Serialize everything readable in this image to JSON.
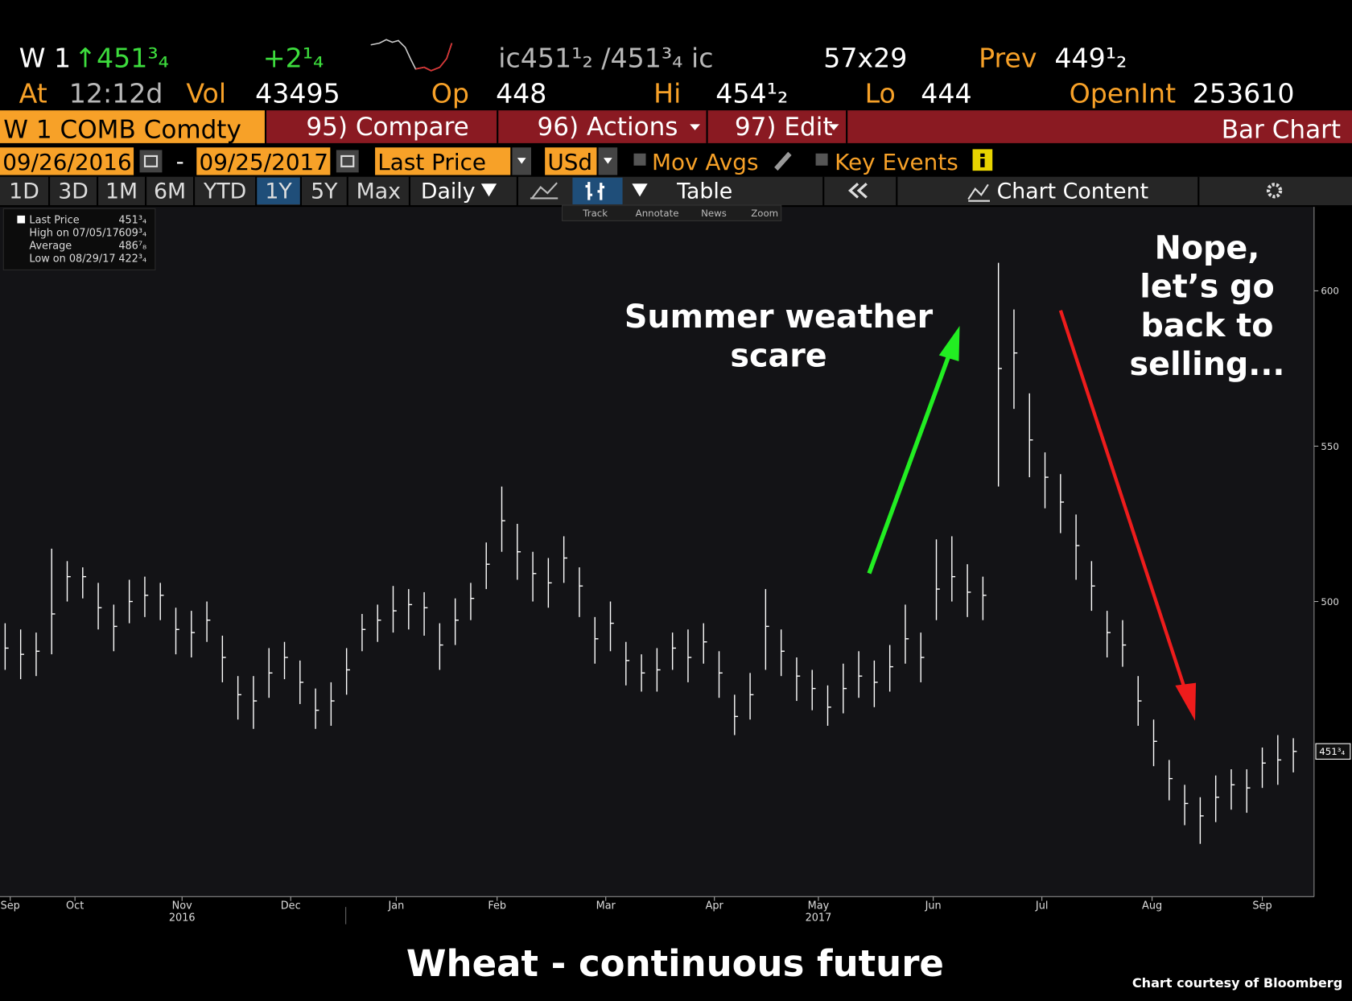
{
  "header": {
    "ticker": "W 1",
    "last": "↑451³₄",
    "change": "+2¹₄",
    "bid_ask": "ic451¹₂ /451³₄ ic",
    "size": "57x29",
    "prev_label": "Prev",
    "prev": "449¹₂",
    "at_label": "At",
    "time": "12:12d",
    "vol_label": "Vol",
    "vol": "43495",
    "op_label": "Op",
    "op": "448",
    "hi_label": "Hi",
    "hi": "454¹₂",
    "lo_label": "Lo",
    "lo": "444",
    "oi_label": "OpenInt",
    "oi": "253610"
  },
  "toolbar": {
    "security": "W 1 COMB Comdty",
    "compare": "95) Compare",
    "actions": "96) Actions",
    "edit": "97) Edit",
    "view": "Bar Chart",
    "start_date": "09/26/2016",
    "dash": "-",
    "end_date": "09/25/2017",
    "field": "Last Price",
    "currency": "USd",
    "mov_avgs": "Mov Avgs",
    "key_events": "Key Events",
    "periods": [
      "1D",
      "3D",
      "1M",
      "6M",
      "YTD",
      "1Y",
      "5Y",
      "Max"
    ],
    "frequency": "Daily",
    "table": "Table",
    "chart_content": "Chart Content",
    "tools": [
      "Track",
      "Annotate",
      "News",
      "Zoom"
    ]
  },
  "legend_box": [
    [
      "Last Price",
      "451³₄"
    ],
    [
      "High on 07/05/17",
      "609³₄"
    ],
    [
      "Average",
      "486⁷₈"
    ],
    [
      "Low on 08/29/17",
      "422³₄"
    ]
  ],
  "chart_data": {
    "type": "ohlc",
    "title": "Wheat - continuous future",
    "credit": "Chart courtesy of Bloomberg",
    "annotations": [
      [
        "Summer weather",
        "scare"
      ],
      [
        "Nope,",
        "let’s go",
        "back to",
        "selling..."
      ]
    ],
    "series": [
      {
        "name": "Last Price",
        "color": "#ffffff",
        "high": [
          493,
          491,
          490,
          517,
          513,
          511,
          506,
          499,
          507,
          508,
          506,
          498,
          497,
          500,
          489,
          476,
          476,
          485,
          487,
          481,
          472,
          474,
          485,
          496,
          499,
          505,
          504,
          503,
          493,
          501,
          506,
          519,
          537,
          525,
          516,
          514,
          521,
          511,
          495,
          500,
          487,
          483,
          485,
          490,
          491,
          493,
          484,
          470,
          477,
          504,
          491,
          482,
          478,
          473,
          480,
          484,
          481,
          486,
          499,
          490,
          520,
          521,
          512,
          508,
          609,
          594,
          567,
          548,
          541,
          528,
          513,
          497,
          494,
          476,
          462,
          449,
          441,
          437,
          444,
          446,
          446,
          453,
          457,
          456
        ],
        "low": [
          478,
          475,
          476,
          483,
          500,
          501,
          491,
          484,
          493,
          495,
          494,
          483,
          482,
          487,
          474,
          462,
          459,
          469,
          475,
          467,
          459,
          460,
          470,
          484,
          487,
          490,
          491,
          489,
          478,
          486,
          494,
          504,
          516,
          507,
          500,
          498,
          506,
          495,
          480,
          484,
          473,
          471,
          471,
          478,
          474,
          480,
          469,
          457,
          462,
          478,
          476,
          468,
          465,
          460,
          464,
          469,
          466,
          471,
          480,
          474,
          494,
          500,
          495,
          494,
          537,
          562,
          540,
          530,
          522,
          507,
          497,
          482,
          479,
          460,
          447,
          436,
          428,
          422,
          429,
          433,
          432,
          440,
          441,
          445
        ],
        "close": [
          485,
          483,
          484,
          496,
          508,
          508,
          498,
          492,
          500,
          502,
          502,
          491,
          490,
          494,
          482,
          470,
          468,
          477,
          482,
          474,
          465,
          468,
          478,
          491,
          494,
          497,
          499,
          498,
          486,
          494,
          501,
          512,
          526,
          516,
          509,
          506,
          514,
          505,
          488,
          493,
          481,
          477,
          478,
          485,
          482,
          487,
          477,
          463,
          470,
          492,
          484,
          476,
          472,
          466,
          472,
          476,
          474,
          479,
          488,
          482,
          504,
          508,
          503,
          502,
          575,
          580,
          552,
          540,
          532,
          518,
          505,
          490,
          486,
          468,
          455,
          443,
          435,
          431,
          437,
          441,
          440,
          448,
          449,
          451.75
        ]
      }
    ],
    "last_price": {
      "value": 451.75,
      "label": "451³₄"
    },
    "xlim": [
      -0.33,
      84.28
    ],
    "xticks": [
      {
        "value": 0.33,
        "label": "Sep"
      },
      {
        "value": 4.5,
        "label": "Oct"
      },
      {
        "value": 11.4,
        "label": "Nov"
      },
      {
        "value": 18.4,
        "label": "Dec"
      },
      {
        "value": 25.2,
        "label": "Jan"
      },
      {
        "value": 31.7,
        "label": "Feb"
      },
      {
        "value": 38.7,
        "label": "Mar"
      },
      {
        "value": 45.7,
        "label": "Apr"
      },
      {
        "value": 52.4,
        "label": "May"
      },
      {
        "value": 59.8,
        "label": "Jun"
      },
      {
        "value": 66.8,
        "label": "Jul"
      },
      {
        "value": 73.9,
        "label": "Aug"
      },
      {
        "value": 81,
        "label": "Sep"
      }
    ],
    "year_labels": [
      {
        "value": 11.4,
        "label": "2016"
      },
      {
        "value": 52.4,
        "label": "2017"
      }
    ],
    "ylim": [
      405,
      627
    ],
    "yticks": [
      500,
      550,
      600
    ],
    "grid": false
  }
}
